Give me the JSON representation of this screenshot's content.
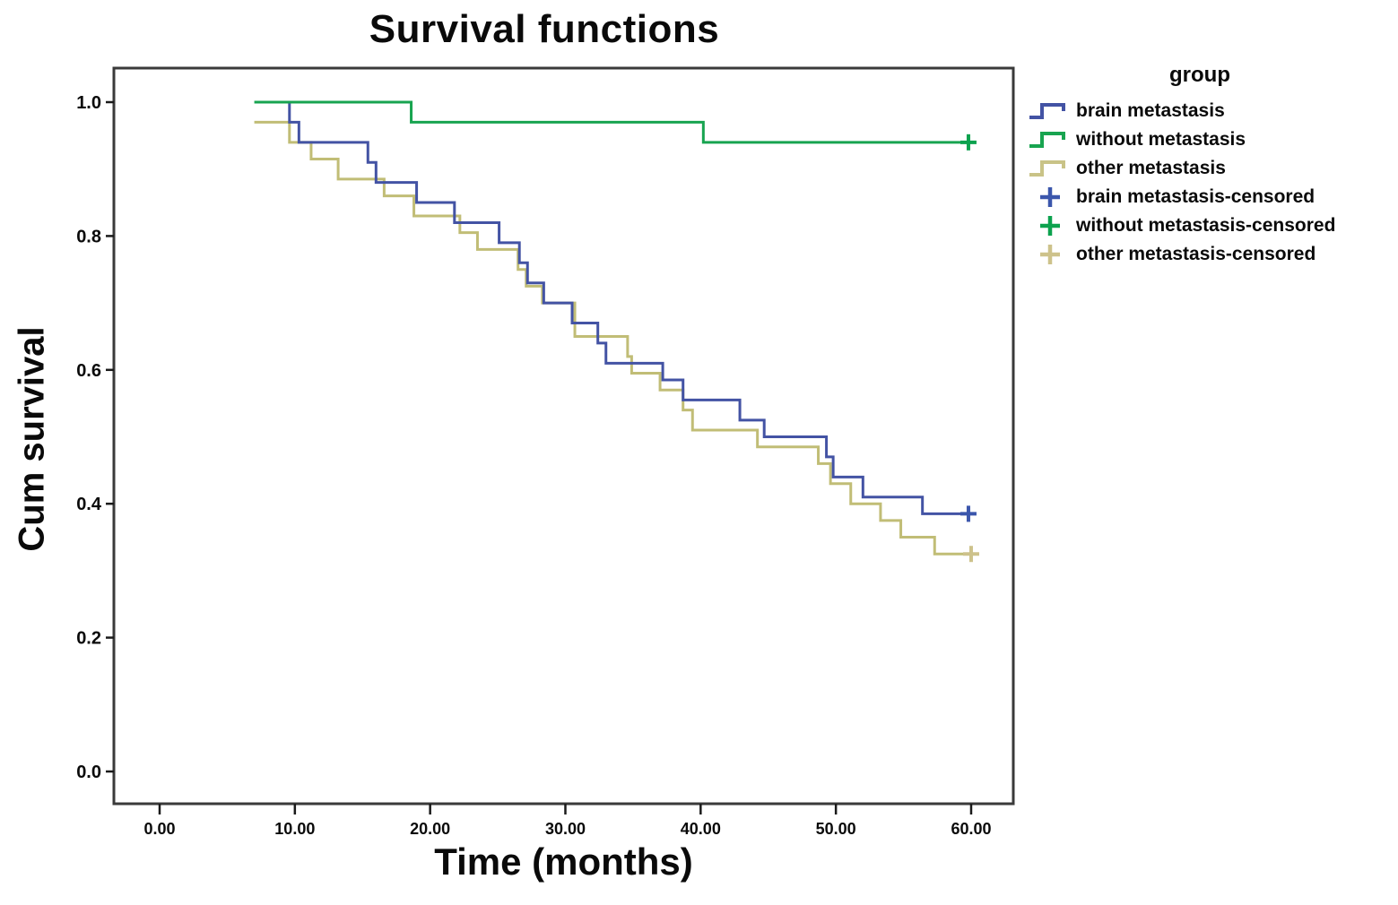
{
  "chart_data": {
    "type": "line",
    "subtype": "kaplan-meier-step",
    "title": "Survival functions",
    "xlabel": "Time (months)",
    "ylabel": "Cum survival",
    "xlim": [
      0,
      60
    ],
    "ylim": [
      0.0,
      1.0
    ],
    "grid": false,
    "frame_color": "#3a3a3a",
    "tick_color": "#1a1a1a",
    "x_ticks": [
      {
        "value": 0,
        "label": "0.00"
      },
      {
        "value": 10,
        "label": "10.00"
      },
      {
        "value": 20,
        "label": "20.00"
      },
      {
        "value": 30,
        "label": "30.00"
      },
      {
        "value": 40,
        "label": "40.00"
      },
      {
        "value": 50,
        "label": "50.00"
      },
      {
        "value": 60,
        "label": "60.00"
      }
    ],
    "y_ticks": [
      {
        "value": 0.0,
        "label": "0.0"
      },
      {
        "value": 0.2,
        "label": "0.2"
      },
      {
        "value": 0.4,
        "label": "0.4"
      },
      {
        "value": 0.6,
        "label": "0.6"
      },
      {
        "value": 0.8,
        "label": "0.8"
      },
      {
        "value": 1.0,
        "label": "1.0"
      }
    ],
    "legend": {
      "title": "group",
      "position": "top-right",
      "items": [
        {
          "label": "brain metastasis",
          "type": "line",
          "color": "#4353a4"
        },
        {
          "label": "without metastasis",
          "type": "line",
          "color": "#18a450"
        },
        {
          "label": "other metastasis",
          "type": "line",
          "color": "#c9c387"
        },
        {
          "label": "brain metastasis-censored",
          "type": "plus",
          "color": "#3b56ac"
        },
        {
          "label": "without metastasis-censored",
          "type": "plus",
          "color": "#0ca24e"
        },
        {
          "label": "other metastasis-censored",
          "type": "plus",
          "color": "#cdc28b"
        }
      ]
    },
    "series": [
      {
        "name": "other metastasis",
        "color": "#c1bd76",
        "censor_color": "#cdc28b",
        "steps": [
          [
            7.0,
            0.97
          ],
          [
            9.6,
            0.94
          ],
          [
            11.2,
            0.915
          ],
          [
            13.2,
            0.885
          ],
          [
            16.6,
            0.86
          ],
          [
            18.8,
            0.83
          ],
          [
            22.2,
            0.805
          ],
          [
            23.5,
            0.78
          ],
          [
            26.5,
            0.75
          ],
          [
            27.1,
            0.725
          ],
          [
            28.3,
            0.7
          ],
          [
            30.7,
            0.65
          ],
          [
            34.6,
            0.62
          ],
          [
            34.9,
            0.595
          ],
          [
            37.0,
            0.57
          ],
          [
            38.7,
            0.54
          ],
          [
            39.4,
            0.51
          ],
          [
            44.2,
            0.485
          ],
          [
            48.7,
            0.46
          ],
          [
            49.6,
            0.43
          ],
          [
            51.1,
            0.4
          ],
          [
            53.3,
            0.375
          ],
          [
            54.8,
            0.35
          ],
          [
            57.3,
            0.325
          ]
        ],
        "end": 60.2,
        "censored": [
          [
            60,
            0.325
          ]
        ]
      },
      {
        "name": "brain metastasis",
        "color": "#4353a4",
        "censor_color": "#3b56ac",
        "steps": [
          [
            9.5,
            1.0
          ],
          [
            9.6,
            0.97
          ],
          [
            10.3,
            0.94
          ],
          [
            15.4,
            0.91
          ],
          [
            16.0,
            0.88
          ],
          [
            19.0,
            0.85
          ],
          [
            21.8,
            0.82
          ],
          [
            25.1,
            0.79
          ],
          [
            26.6,
            0.76
          ],
          [
            27.2,
            0.73
          ],
          [
            28.4,
            0.7
          ],
          [
            30.5,
            0.67
          ],
          [
            32.4,
            0.64
          ],
          [
            33.0,
            0.61
          ],
          [
            37.2,
            0.585
          ],
          [
            38.7,
            0.555
          ],
          [
            42.9,
            0.525
          ],
          [
            44.7,
            0.5
          ],
          [
            49.3,
            0.47
          ],
          [
            49.8,
            0.44
          ],
          [
            52.0,
            0.41
          ],
          [
            56.4,
            0.385
          ]
        ],
        "end": 60.0,
        "censored": [
          [
            59.8,
            0.385
          ]
        ]
      },
      {
        "name": "without metastasis",
        "color": "#18a450",
        "censor_color": "#0ca24e",
        "steps": [
          [
            7.0,
            1.0
          ],
          [
            18.6,
            0.97
          ],
          [
            40.2,
            0.94
          ]
        ],
        "end": 60.0,
        "censored": [
          [
            59.8,
            0.94
          ]
        ]
      }
    ]
  }
}
